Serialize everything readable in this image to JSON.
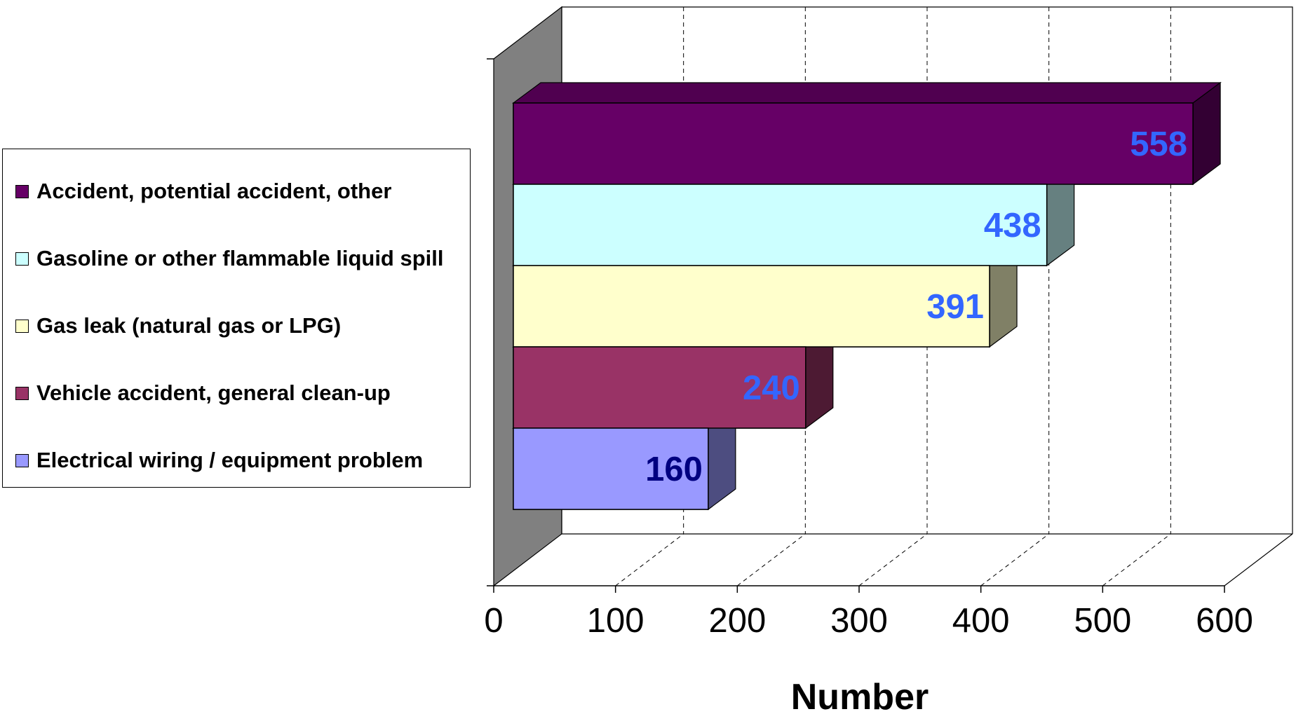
{
  "chart_data": {
    "type": "bar",
    "orientation": "horizontal",
    "three_d": true,
    "categories": [
      "Accident, potential accident, other",
      "Gasoline or other flammable liquid spill",
      "Gas leak (natural gas or LPG)",
      "Vehicle accident, general clean-up",
      "Electrical wiring / equipment problem"
    ],
    "values": [
      558,
      438,
      391,
      240,
      160
    ],
    "data_labels": [
      "558",
      "438",
      "391",
      "240",
      "160"
    ],
    "colors": [
      "#660066",
      "#CCFFFF",
      "#FFFFCC",
      "#993366",
      "#9999FF"
    ],
    "label_colors": [
      "#3366FF",
      "#3366FF",
      "#3366FF",
      "#3366FF",
      "#000080"
    ],
    "xlabel": "Number",
    "ylabel": "",
    "xlim": [
      0,
      600
    ],
    "ticks": [
      "0",
      "100",
      "200",
      "300",
      "400",
      "500",
      "600"
    ],
    "grid": true,
    "legend": "left"
  }
}
